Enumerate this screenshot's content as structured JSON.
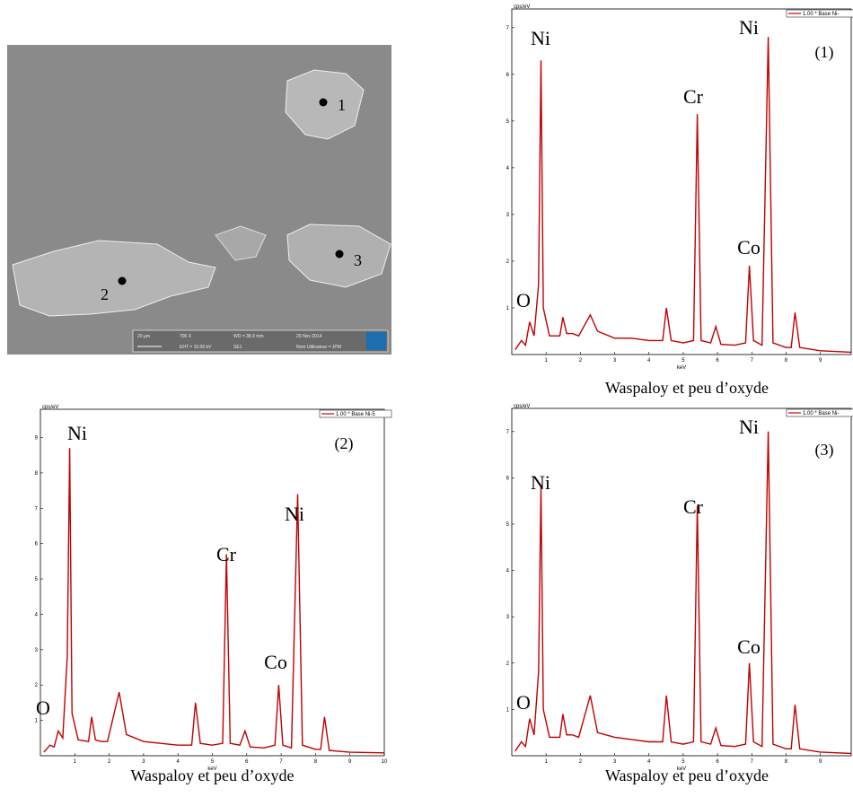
{
  "image": {
    "points": [
      "1",
      "2",
      "3"
    ],
    "scale_bar": "20 µm",
    "info": [
      "700 X",
      "WD = 38.9 mm",
      "20 Nov 2014",
      "EHT = 10.00 kV",
      "SE1",
      "Nom Utilisateur = JPM"
    ]
  },
  "chart_data": [
    {
      "type": "line",
      "panel_label": "(1)",
      "caption": "Waspaloy et peu d’oxyde",
      "y_label": "cps/eV",
      "x_label": "keV",
      "annotations": [
        "Ni",
        "Ni",
        "Cr",
        "Co",
        "O"
      ],
      "x": [
        0.1,
        0.28,
        0.4,
        0.52,
        0.65,
        0.78,
        0.85,
        0.92,
        1.1,
        1.4,
        1.49,
        1.6,
        1.77,
        1.95,
        2.29,
        2.5,
        3,
        3.5,
        4,
        4.4,
        4.51,
        4.65,
        5,
        5.3,
        5.41,
        5.52,
        5.8,
        5.95,
        6.1,
        6.5,
        6.82,
        6.93,
        7.05,
        7.3,
        7.48,
        7.62,
        8,
        8.15,
        8.26,
        8.4,
        9,
        9.9
      ],
      "series": [
        {
          "name": "1.00 * Base Ni-",
          "color": "#c00000",
          "values": [
            0.1,
            0.3,
            0.2,
            0.7,
            0.4,
            1.5,
            6.3,
            1.0,
            0.4,
            0.4,
            0.8,
            0.45,
            0.45,
            0.4,
            0.85,
            0.5,
            0.35,
            0.35,
            0.3,
            0.3,
            1.0,
            0.3,
            0.25,
            0.3,
            5.15,
            0.3,
            0.25,
            0.6,
            0.22,
            0.2,
            0.25,
            1.9,
            0.3,
            0.2,
            6.8,
            0.25,
            0.15,
            0.15,
            0.9,
            0.15,
            0.08,
            0.05
          ]
        }
      ],
      "xlim": [
        0,
        9.9
      ],
      "xticks": [
        1,
        2,
        3,
        4,
        5,
        6,
        7,
        8,
        9
      ],
      "ylim": [
        0,
        7.4
      ],
      "yticks": [
        1,
        2,
        3,
        4,
        5,
        6,
        7
      ]
    },
    {
      "type": "line",
      "panel_label": "(2)",
      "caption": "Waspaloy et peu d’oxyde",
      "y_label": "cps/eV",
      "x_label": "keV",
      "annotations": [
        "Ni",
        "Ni",
        "Cr",
        "Co",
        "O"
      ],
      "x": [
        0.1,
        0.28,
        0.4,
        0.52,
        0.65,
        0.78,
        0.85,
        0.92,
        1.1,
        1.4,
        1.49,
        1.6,
        1.77,
        1.95,
        2.29,
        2.5,
        3,
        3.5,
        4,
        4.4,
        4.51,
        4.65,
        5,
        5.3,
        5.41,
        5.52,
        5.8,
        5.95,
        6.1,
        6.5,
        6.82,
        6.93,
        7.05,
        7.3,
        7.48,
        7.62,
        8,
        8.15,
        8.26,
        8.4,
        9,
        10
      ],
      "series": [
        {
          "name": "1.00 * Base Ni-5",
          "color": "#c00000",
          "values": [
            0.1,
            0.3,
            0.25,
            0.7,
            0.5,
            2.8,
            8.7,
            1.2,
            0.45,
            0.4,
            1.1,
            0.45,
            0.4,
            0.4,
            1.8,
            0.6,
            0.4,
            0.35,
            0.3,
            0.3,
            1.5,
            0.35,
            0.3,
            0.35,
            5.7,
            0.35,
            0.3,
            0.7,
            0.25,
            0.22,
            0.3,
            2.0,
            0.3,
            0.22,
            7.4,
            0.3,
            0.18,
            0.18,
            1.1,
            0.15,
            0.1,
            0.08
          ]
        }
      ],
      "xlim": [
        0,
        10
      ],
      "xticks": [
        1,
        2,
        3,
        4,
        5,
        6,
        7,
        8,
        9,
        10
      ],
      "ylim": [
        0,
        9.8
      ],
      "yticks": [
        1,
        2,
        3,
        4,
        5,
        6,
        7,
        8,
        9
      ]
    },
    {
      "type": "line",
      "panel_label": "(3)",
      "caption": "Waspaloy et peu d’oxyde",
      "y_label": "cps/eV",
      "x_label": "keV",
      "annotations": [
        "Ni",
        "Ni",
        "Cr",
        "Co",
        "O"
      ],
      "x": [
        0.1,
        0.28,
        0.4,
        0.52,
        0.65,
        0.78,
        0.85,
        0.92,
        1.1,
        1.4,
        1.49,
        1.6,
        1.77,
        1.95,
        2.29,
        2.5,
        3,
        3.5,
        4,
        4.4,
        4.51,
        4.65,
        5,
        5.3,
        5.41,
        5.52,
        5.8,
        5.95,
        6.1,
        6.5,
        6.82,
        6.93,
        7.05,
        7.3,
        7.48,
        7.62,
        8,
        8.15,
        8.26,
        8.4,
        9,
        9.9
      ],
      "series": [
        {
          "name": "1.00 * Base Ni-",
          "color": "#c00000",
          "values": [
            0.1,
            0.3,
            0.2,
            0.8,
            0.45,
            1.8,
            5.8,
            1.0,
            0.4,
            0.4,
            0.9,
            0.45,
            0.45,
            0.4,
            1.3,
            0.5,
            0.4,
            0.35,
            0.3,
            0.3,
            1.3,
            0.3,
            0.25,
            0.3,
            5.4,
            0.3,
            0.25,
            0.6,
            0.22,
            0.2,
            0.25,
            2.0,
            0.3,
            0.2,
            7.0,
            0.25,
            0.15,
            0.15,
            1.1,
            0.15,
            0.08,
            0.05
          ]
        }
      ],
      "xlim": [
        0,
        9.9
      ],
      "xticks": [
        1,
        2,
        3,
        4,
        5,
        6,
        7,
        8,
        9
      ],
      "ylim": [
        0,
        7.5
      ],
      "yticks": [
        1,
        2,
        3,
        4,
        5,
        6,
        7
      ]
    }
  ]
}
